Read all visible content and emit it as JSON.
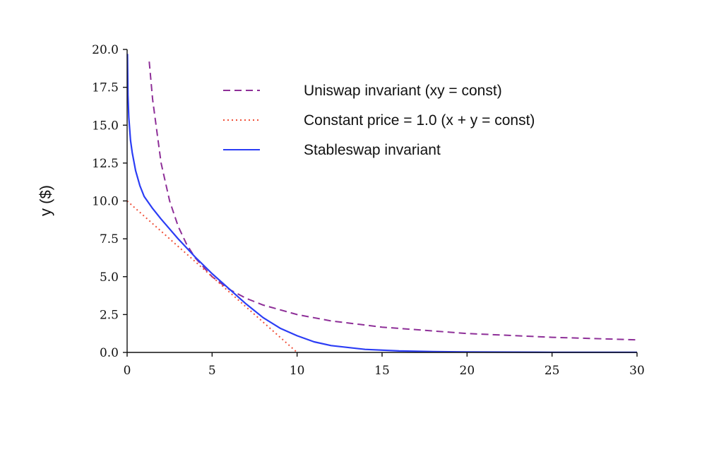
{
  "chart_data": {
    "type": "line",
    "title": "",
    "xlabel": "",
    "ylabel": "y ($)",
    "xlim": [
      0,
      30
    ],
    "ylim": [
      0,
      20
    ],
    "xticks": [
      "0",
      "5",
      "10",
      "15",
      "20",
      "25",
      "30"
    ],
    "yticks": [
      "0.0",
      "2.5",
      "5.0",
      "7.5",
      "10.0",
      "12.5",
      "15.0",
      "17.5",
      "20.0"
    ],
    "grid": false,
    "legend_position": "top-right",
    "series": [
      {
        "name": "Uniswap invariant (xy = const)",
        "style": "dashed",
        "color": "#8e2f98",
        "x": [
          1.3,
          1.5,
          2,
          2.5,
          3,
          3.5,
          4,
          5,
          6,
          7,
          8,
          10,
          12,
          15,
          20,
          25,
          30
        ],
        "y": [
          19.2,
          16.7,
          12.5,
          10.0,
          8.33,
          7.14,
          6.25,
          5.0,
          4.17,
          3.57,
          3.13,
          2.5,
          2.08,
          1.67,
          1.25,
          1.0,
          0.83
        ]
      },
      {
        "name": "Constant price = 1.0 (x + y = const)",
        "style": "dotted",
        "color": "#f0513a",
        "x": [
          0,
          10
        ],
        "y": [
          10,
          0
        ]
      },
      {
        "name": "Stableswap invariant",
        "style": "solid",
        "color": "#2b3df5",
        "x": [
          0.02,
          0.05,
          0.1,
          0.2,
          0.3,
          0.5,
          0.75,
          1.0,
          1.5,
          2,
          3,
          4,
          5,
          6,
          7,
          8,
          9,
          10,
          11,
          12,
          14,
          16,
          18,
          20,
          25,
          30
        ],
        "y": [
          19.7,
          17.0,
          15.5,
          14.0,
          13.2,
          12.0,
          11.0,
          10.3,
          9.5,
          8.8,
          7.5,
          6.3,
          5.2,
          4.2,
          3.2,
          2.3,
          1.6,
          1.1,
          0.7,
          0.45,
          0.2,
          0.1,
          0.05,
          0.03,
          0.01,
          0.01
        ]
      }
    ]
  }
}
